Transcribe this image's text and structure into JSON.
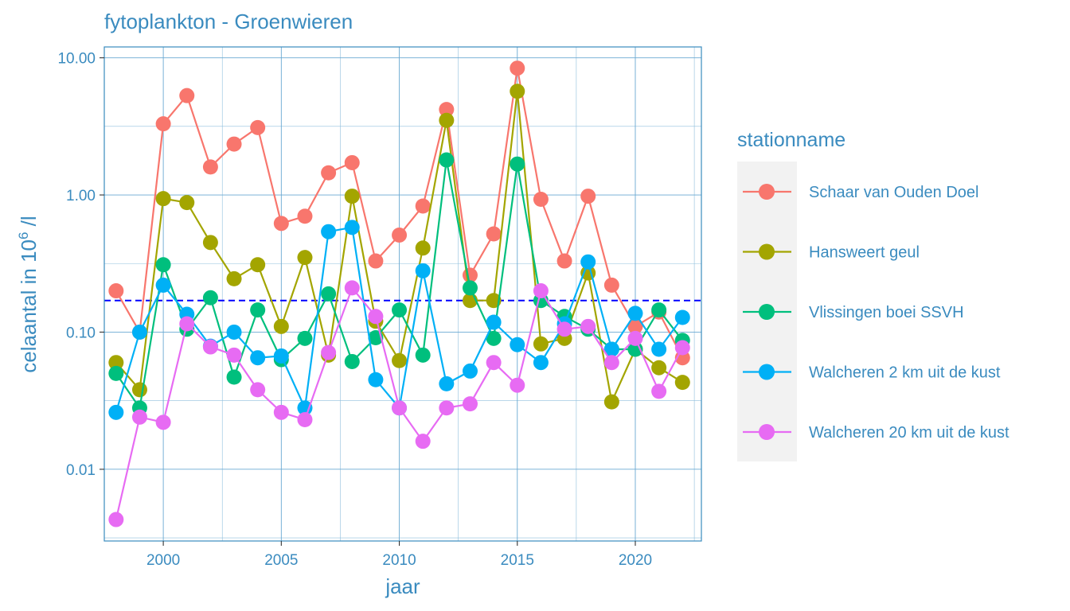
{
  "chart_data": {
    "type": "line",
    "title": "fytoplankton - Groenwieren",
    "xlabel": "jaar",
    "ylabel": "celaantal in  10",
    "ylabel_sup": "6",
    "ylabel_suffix": " /l",
    "yscale": "log10",
    "xlim": [
      1997.5,
      2022.8
    ],
    "ylim": [
      0.003,
      12
    ],
    "x_ticks": [
      2000,
      2005,
      2010,
      2015,
      2020
    ],
    "x_tick_labels": [
      "2000",
      "2005",
      "2010",
      "2015",
      "2020"
    ],
    "y_ticks": [
      0.01,
      0.1,
      1,
      10
    ],
    "y_tick_labels": [
      "0.01",
      "0.10",
      "1.00",
      "10.00"
    ],
    "reference_line": {
      "y": 0.17,
      "color": "#0000ff",
      "style": "dashed"
    },
    "legend": {
      "title": "stationname",
      "placement": "right"
    },
    "x": [
      1998,
      1999,
      2000,
      2001,
      2002,
      2003,
      2004,
      2005,
      2006,
      2007,
      2008,
      2009,
      2010,
      2011,
      2012,
      2013,
      2014,
      2015,
      2016,
      2017,
      2018,
      2019,
      2020,
      2021,
      2022
    ],
    "series": [
      {
        "name": "Schaar van Ouden Doel",
        "color": "#f8766d",
        "values": [
          0.2,
          0.1,
          3.3,
          5.3,
          1.6,
          2.35,
          3.1,
          0.62,
          0.7,
          1.45,
          1.72,
          0.33,
          0.51,
          0.83,
          4.2,
          0.26,
          0.52,
          8.4,
          0.93,
          0.33,
          0.98,
          0.22,
          0.11,
          0.14,
          0.065
        ]
      },
      {
        "name": "Hansweert geul",
        "color": "#a3a500",
        "values": [
          0.06,
          0.038,
          0.94,
          0.88,
          0.45,
          0.245,
          0.31,
          0.11,
          0.35,
          0.068,
          0.98,
          0.12,
          0.062,
          0.41,
          3.5,
          0.17,
          0.17,
          5.7,
          0.082,
          0.09,
          0.27,
          0.031,
          0.075,
          0.055,
          0.043
        ]
      },
      {
        "name": "Vlissingen boei SSVH",
        "color": "#00bf7d",
        "values": [
          0.05,
          0.028,
          0.31,
          0.105,
          0.178,
          0.047,
          0.145,
          0.063,
          0.09,
          0.19,
          0.061,
          0.091,
          0.145,
          0.068,
          1.8,
          0.21,
          0.09,
          1.68,
          0.17,
          0.13,
          0.105,
          0.075,
          0.075,
          0.145,
          0.087
        ]
      },
      {
        "name": "Walcheren 2 km uit de kust",
        "color": "#00b0f6",
        "values": [
          0.026,
          0.1,
          0.22,
          0.135,
          0.079,
          0.1,
          0.065,
          0.067,
          0.028,
          0.54,
          0.58,
          0.045,
          0.028,
          0.28,
          0.042,
          0.052,
          0.118,
          0.081,
          0.06,
          0.115,
          0.325,
          0.075,
          0.137,
          0.075,
          0.128
        ]
      },
      {
        "name": "Walcheren 20 km uit de kust",
        "color": "#e76bf3",
        "values": [
          0.0043,
          0.024,
          0.022,
          0.115,
          0.078,
          0.068,
          0.038,
          0.026,
          0.023,
          0.071,
          0.21,
          0.13,
          0.028,
          0.016,
          0.028,
          0.03,
          0.06,
          0.041,
          0.2,
          0.105,
          0.11,
          0.06,
          0.09,
          0.037,
          0.077
        ]
      }
    ]
  }
}
